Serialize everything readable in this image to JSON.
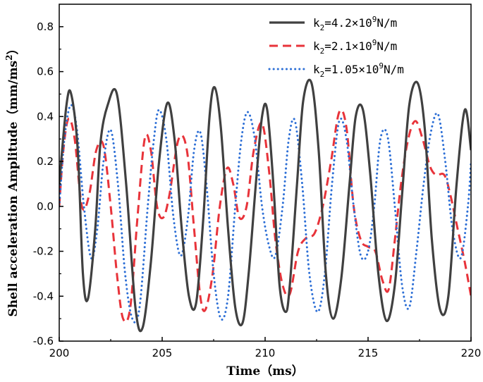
{
  "chart_data": {
    "type": "line",
    "title": "",
    "xlabel": "Time（ms）",
    "ylabel": "Shell acceleration Amplitude（mm/ms²）",
    "ylabel_parts": {
      "main": "Shell acceleration Amplitude（mm/ms",
      "sup": "2",
      "close": "）"
    },
    "xlim": [
      200,
      220
    ],
    "ylim": [
      -0.6,
      0.9
    ],
    "xticks": [
      200,
      205,
      210,
      215,
      220
    ],
    "xtick_labels": [
      "200",
      "205",
      "210",
      "215",
      "220"
    ],
    "yticks": [
      -0.6,
      -0.4,
      -0.2,
      0.0,
      0.2,
      0.4,
      0.6,
      0.8
    ],
    "ytick_labels": [
      "-0.6",
      "-0.4",
      "-0.2",
      "0.0",
      "0.2",
      "0.4",
      "0.6",
      "0.8"
    ],
    "legend_position": "top-right",
    "series": [
      {
        "name": "k2=4.2×10^9N/m",
        "label": {
          "k": "k",
          "sub": "2",
          "pre": "=4.2×10",
          "sup": "9",
          "unit": "N/m"
        },
        "color": "#404040",
        "style": "solid",
        "x": [
          200.0,
          200.35,
          200.58,
          200.9,
          201.15,
          201.4,
          201.75,
          202.0,
          202.35,
          202.8,
          203.25,
          203.7,
          204.05,
          204.45,
          204.85,
          205.25,
          205.6,
          205.95,
          206.3,
          206.65,
          207.0,
          207.3,
          207.55,
          207.85,
          208.2,
          208.55,
          208.9,
          209.2,
          209.55,
          209.85,
          210.1,
          210.4,
          210.7,
          211.0,
          211.2,
          211.55,
          211.85,
          212.25,
          212.6,
          212.95,
          213.3,
          213.7,
          214.1,
          214.4,
          214.75,
          215.1,
          215.5,
          215.9,
          216.3,
          216.65,
          217.0,
          217.4,
          217.75,
          218.1,
          218.5,
          218.9,
          219.3,
          219.7,
          220.0
        ],
        "y": [
          0.1,
          0.45,
          0.5,
          0.25,
          -0.3,
          -0.41,
          -0.1,
          0.28,
          0.45,
          0.5,
          0.1,
          -0.45,
          -0.54,
          -0.25,
          0.2,
          0.46,
          0.3,
          -0.1,
          -0.4,
          -0.43,
          -0.05,
          0.4,
          0.53,
          0.35,
          -0.1,
          -0.45,
          -0.52,
          -0.3,
          0.1,
          0.4,
          0.43,
          0.1,
          -0.35,
          -0.47,
          -0.35,
          0.1,
          0.47,
          0.55,
          0.25,
          -0.3,
          -0.5,
          -0.32,
          0.1,
          0.4,
          0.43,
          0.15,
          -0.3,
          -0.51,
          -0.35,
          0.05,
          0.45,
          0.55,
          0.35,
          -0.15,
          -0.46,
          -0.4,
          0.1,
          0.43,
          0.25
        ]
      },
      {
        "name": "k2=2.1×10^9N/m",
        "label": {
          "k": "k",
          "sub": "2",
          "pre": "=2.1×10",
          "sup": "9",
          "unit": "N/m"
        },
        "color": "#e8333a",
        "style": "dashed",
        "x": [
          200.0,
          200.2,
          200.45,
          200.75,
          201.1,
          201.45,
          201.8,
          202.15,
          202.5,
          202.8,
          203.1,
          203.45,
          203.8,
          204.15,
          204.45,
          204.75,
          205.05,
          205.35,
          205.8,
          206.2,
          206.55,
          206.85,
          207.1,
          207.45,
          207.8,
          208.15,
          208.45,
          208.75,
          209.1,
          209.45,
          209.85,
          210.2,
          210.5,
          210.85,
          211.2,
          211.6,
          212.0,
          212.4,
          212.8,
          213.2,
          213.6,
          213.95,
          214.3,
          214.65,
          215.0,
          215.35,
          215.7,
          216.0,
          216.3,
          216.6,
          216.95,
          217.3,
          217.65,
          218.0,
          218.3,
          218.7,
          219.0,
          219.35,
          219.7,
          220.0
        ],
        "y": [
          0.0,
          0.25,
          0.39,
          0.3,
          0.0,
          0.05,
          0.25,
          0.27,
          0.0,
          -0.3,
          -0.5,
          -0.45,
          -0.05,
          0.3,
          0.25,
          0.0,
          -0.05,
          0.05,
          0.3,
          0.25,
          -0.1,
          -0.4,
          -0.46,
          -0.3,
          0.0,
          0.17,
          0.1,
          -0.05,
          0.0,
          0.25,
          0.37,
          0.15,
          -0.15,
          -0.35,
          -0.39,
          -0.2,
          -0.14,
          -0.12,
          0.0,
          0.2,
          0.42,
          0.35,
          0.0,
          -0.15,
          -0.18,
          -0.2,
          -0.33,
          -0.37,
          -0.15,
          0.1,
          0.3,
          0.38,
          0.3,
          0.18,
          0.14,
          0.14,
          0.05,
          -0.1,
          -0.25,
          -0.4
        ]
      },
      {
        "name": "k2=1.05×10^9N/m",
        "label": {
          "k": "k",
          "sub": "2",
          "pre": "=1.05×10",
          "sup": "9",
          "unit": "N/m"
        },
        "color": "#2d6fd6",
        "style": "dotted",
        "x": [
          200.0,
          200.25,
          200.55,
          200.85,
          201.2,
          201.55,
          201.85,
          202.15,
          202.5,
          202.85,
          203.2,
          203.55,
          203.9,
          204.3,
          204.6,
          204.85,
          205.2,
          205.55,
          205.9,
          206.25,
          206.55,
          206.85,
          207.15,
          207.5,
          207.85,
          208.2,
          208.55,
          208.85,
          209.15,
          209.5,
          209.85,
          210.2,
          210.5,
          210.85,
          211.15,
          211.45,
          211.8,
          212.15,
          212.55,
          212.9,
          213.25,
          213.6,
          213.95,
          214.3,
          214.65,
          215.0,
          215.3,
          215.6,
          215.95,
          216.3,
          216.65,
          217.0,
          217.35,
          217.7,
          218.05,
          218.4,
          218.75,
          219.1,
          219.5,
          219.85,
          220.0
        ],
        "y": [
          0.0,
          0.3,
          0.45,
          0.35,
          0.0,
          -0.23,
          -0.1,
          0.2,
          0.34,
          0.1,
          -0.3,
          -0.5,
          -0.45,
          0.0,
          0.3,
          0.43,
          0.3,
          -0.05,
          -0.22,
          -0.05,
          0.25,
          0.33,
          0.1,
          -0.3,
          -0.5,
          -0.4,
          0.0,
          0.3,
          0.42,
          0.3,
          0.0,
          -0.18,
          -0.22,
          0.0,
          0.3,
          0.38,
          0.1,
          -0.3,
          -0.47,
          -0.3,
          0.1,
          0.38,
          0.3,
          0.0,
          -0.22,
          -0.2,
          0.0,
          0.3,
          0.31,
          0.0,
          -0.35,
          -0.45,
          -0.2,
          0.1,
          0.33,
          0.41,
          0.2,
          -0.1,
          -0.23,
          0.0,
          0.2
        ]
      }
    ]
  }
}
